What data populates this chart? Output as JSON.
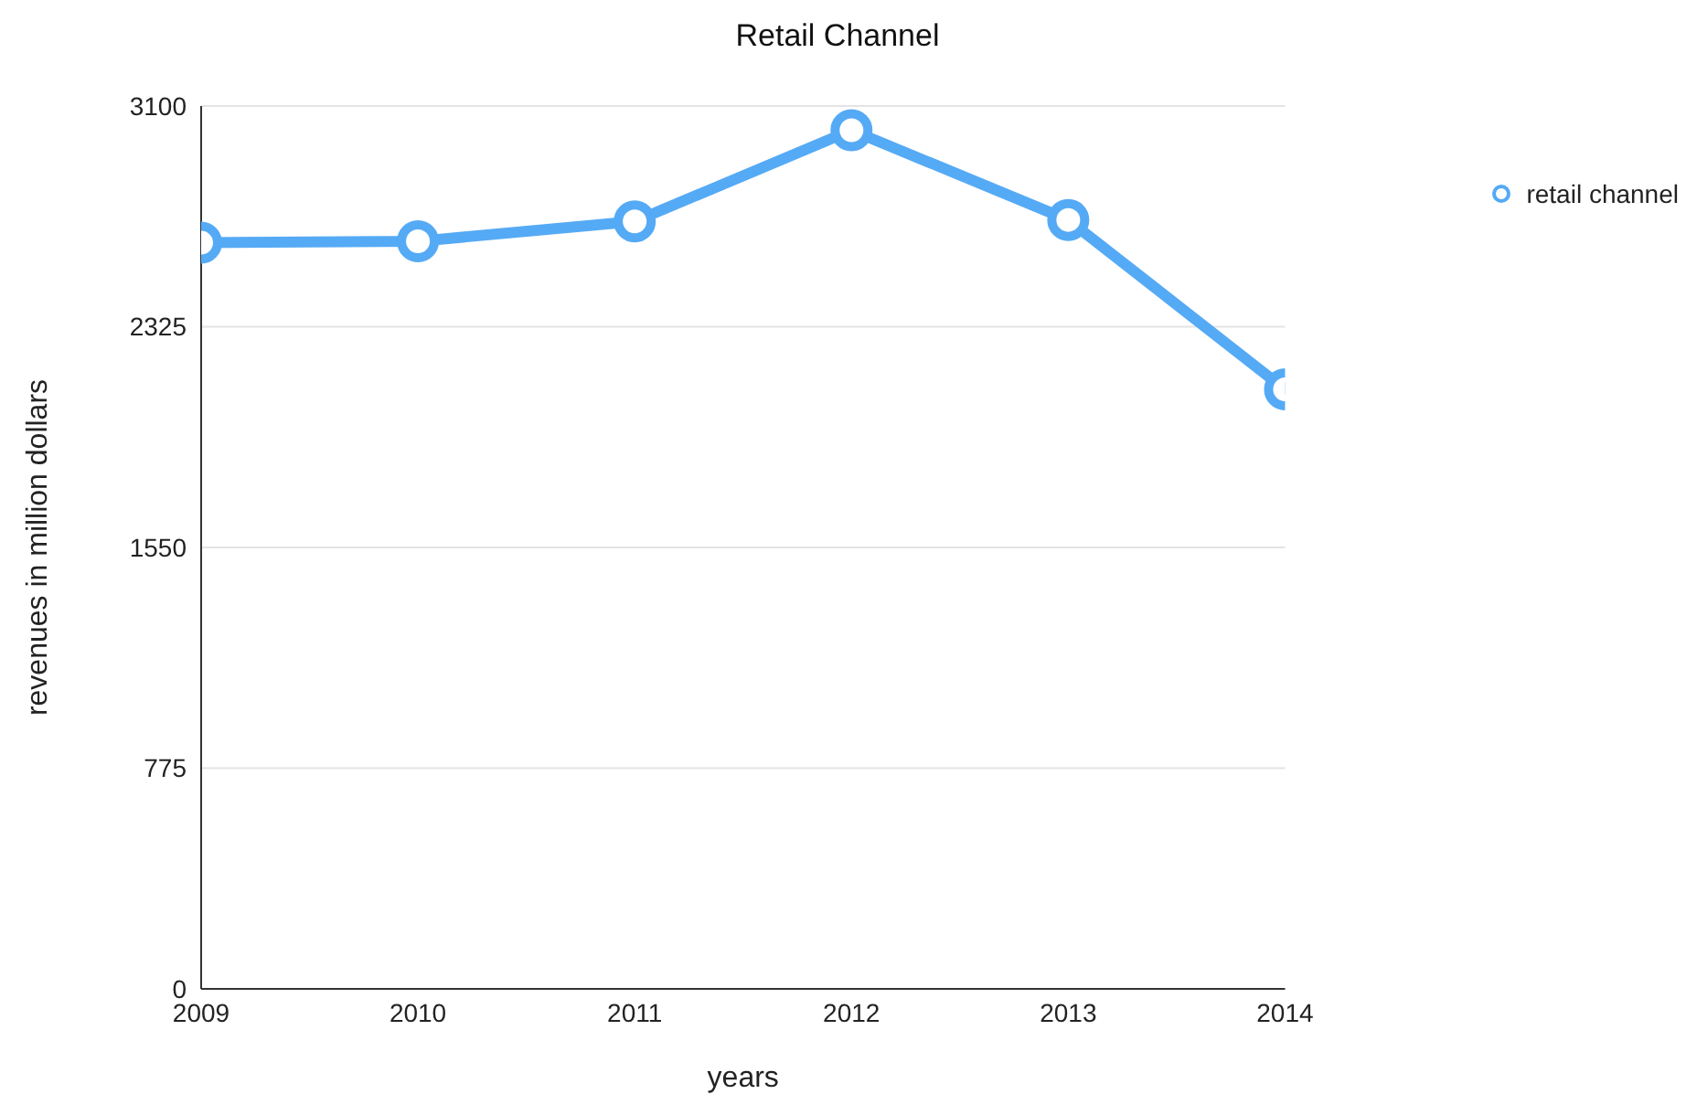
{
  "chart_data": {
    "type": "line",
    "title": "Retail Channel",
    "xlabel": "years",
    "ylabel": "revenues in million dollars",
    "x": [
      2009,
      2010,
      2011,
      2012,
      2013,
      2014
    ],
    "series": [
      {
        "name": "retail channel",
        "color": "#55aaf5",
        "values": [
          2620,
          2625,
          2695,
          3015,
          2700,
          2105
        ]
      }
    ],
    "xlim": [
      2009,
      2014
    ],
    "xticks": [
      2009,
      2010,
      2011,
      2012,
      2013,
      2014
    ],
    "ylim": [
      0,
      3100
    ],
    "yticks": [
      0,
      775,
      1550,
      2325,
      3100
    ],
    "grid": "y",
    "legend": "right",
    "marker": "circle",
    "line_style": "solid"
  }
}
